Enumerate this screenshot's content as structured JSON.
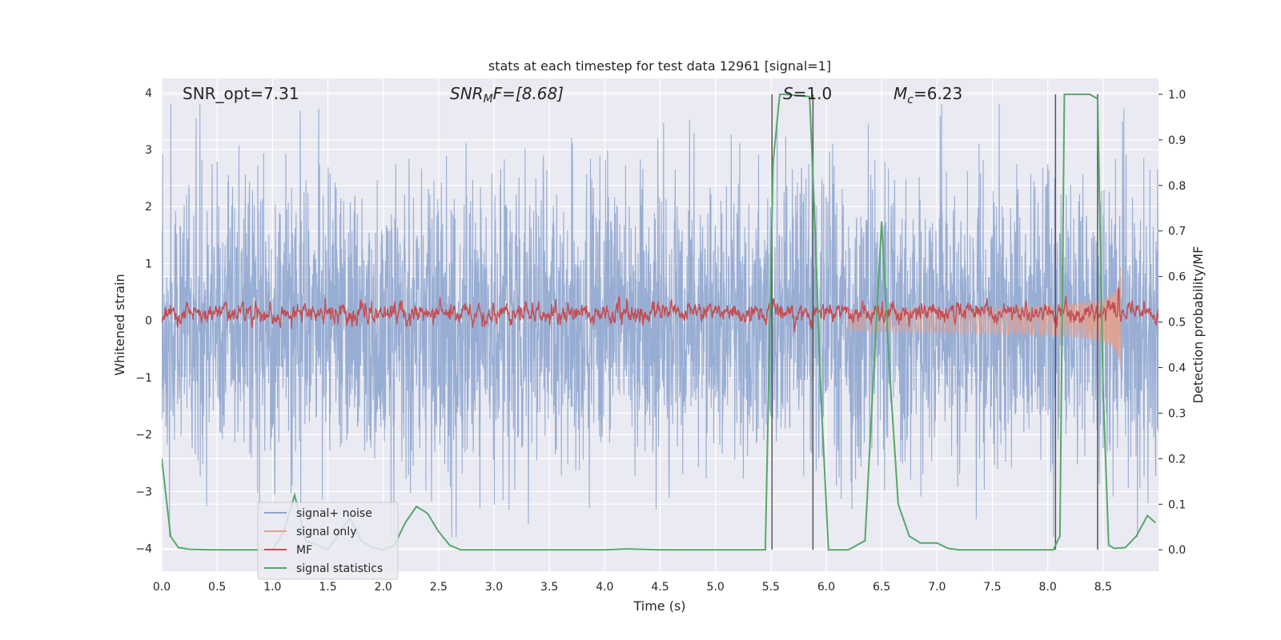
{
  "chart_data": {
    "type": "line",
    "title": "stats at each timestep for test data 12961 [signal=1]",
    "xlabel": "Time (s)",
    "ylabel": "Whitened strain",
    "y2label": "Detection probability/MF",
    "xlim": [
      0.0,
      9.0
    ],
    "ylim": [
      -4.4,
      4.25
    ],
    "y2lim": [
      -0.047,
      1.035
    ],
    "xticks": [
      0.0,
      0.5,
      1.0,
      1.5,
      2.0,
      2.5,
      3.0,
      3.5,
      4.0,
      4.5,
      5.0,
      5.5,
      6.0,
      6.5,
      7.0,
      7.5,
      8.0,
      8.5
    ],
    "yticks": [
      4,
      3,
      2,
      1,
      0,
      -1,
      -2,
      -3,
      -4
    ],
    "y2ticks": [
      1.0,
      0.9,
      0.8,
      0.7,
      0.6,
      0.5,
      0.4,
      0.3,
      0.2,
      0.1,
      0.0
    ],
    "grid": true,
    "legend_position": "bottom-left",
    "annotations": {
      "snr_opt": "SNR_opt=7.31",
      "snr_mf_base": "SNR",
      "snr_mf_sub": "M",
      "snr_mf_rest": "F=[8.68]",
      "s_value": "=1.0",
      "s_symbol": "S",
      "mc_symbol": "M",
      "mc_sub": "c",
      "mc_value": "=6.23"
    },
    "series": [
      {
        "name": "signal+ noise",
        "color": "#8fa6cf",
        "description_values": "whitened strain, roughly Gaussian, amplitude about ±1 with peaks to about ±3.7"
      },
      {
        "name": "signal only",
        "color": "#e7a08a",
        "chirp_start": 6.2,
        "chirp_end": 8.66,
        "peak_amplitude": 0.95
      },
      {
        "name": "MF",
        "color": "#c44e52",
        "baseline": 0.52,
        "spike_time": 8.64,
        "spike_value": 0.6
      },
      {
        "name": "signal statistics",
        "color": "#55a868",
        "x": [
          0.0,
          0.08,
          0.15,
          0.25,
          0.5,
          0.8,
          1.0,
          1.1,
          1.2,
          1.3,
          1.5,
          1.7,
          1.8,
          1.9,
          2.0,
          2.1,
          2.2,
          2.3,
          2.4,
          2.5,
          2.6,
          2.7,
          3.0,
          4.0,
          4.2,
          4.5,
          5.0,
          5.45,
          5.52,
          5.58,
          5.62,
          5.85,
          5.9,
          5.95,
          6.02,
          6.1,
          6.2,
          6.35,
          6.43,
          6.5,
          6.57,
          6.65,
          6.75,
          6.85,
          7.0,
          7.1,
          7.2,
          7.5,
          7.8,
          8.05,
          8.11,
          8.15,
          8.3,
          8.38,
          8.45,
          8.5,
          8.55,
          8.6,
          8.7,
          8.8,
          8.9,
          8.97
        ],
        "values": [
          0.2,
          0.03,
          0.005,
          0.001,
          0.0,
          0.0,
          0.0,
          0.04,
          0.12,
          0.02,
          0.001,
          0.07,
          0.02,
          0.005,
          0.0,
          0.01,
          0.06,
          0.095,
          0.08,
          0.04,
          0.01,
          0.0,
          0.0,
          0.0,
          0.002,
          0.0,
          0.0,
          0.0,
          0.85,
          1.0,
          1.0,
          0.995,
          0.7,
          0.35,
          0.0,
          0.0,
          0.0,
          0.02,
          0.4,
          0.72,
          0.4,
          0.1,
          0.03,
          0.015,
          0.015,
          0.003,
          0.0,
          0.0,
          0.0,
          0.0,
          0.03,
          1.0,
          1.0,
          1.0,
          0.99,
          0.35,
          0.01,
          0.003,
          0.005,
          0.03,
          0.075,
          0.06
        ]
      }
    ],
    "vlines": [
      5.51,
      5.88,
      8.07,
      8.45
    ],
    "seed": 12961
  }
}
